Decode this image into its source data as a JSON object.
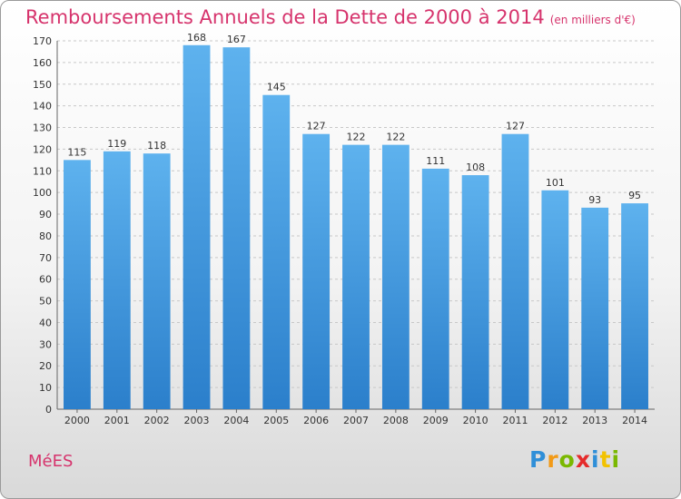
{
  "chart_data": {
    "type": "bar",
    "title": "Remboursements Annuels de la Dette de 2000 à 2014",
    "subtitle": "(en milliers d'€)",
    "categories": [
      "2000",
      "2001",
      "2002",
      "2003",
      "2004",
      "2005",
      "2006",
      "2007",
      "2008",
      "2009",
      "2010",
      "2011",
      "2012",
      "2013",
      "2014"
    ],
    "values": [
      115,
      119,
      118,
      168,
      167,
      145,
      127,
      122,
      122,
      111,
      108,
      127,
      101,
      93,
      95
    ],
    "ylim": [
      0,
      170
    ],
    "yticks": [
      0,
      10,
      20,
      30,
      40,
      50,
      60,
      70,
      80,
      90,
      100,
      110,
      120,
      130,
      140,
      150,
      160,
      170
    ],
    "grid": true,
    "bar_color": "#3f9ae0",
    "title_color": "#d6336c"
  },
  "footer": {
    "commune": "MéES",
    "logo": {
      "p": "P",
      "r": "r",
      "o": "o",
      "x": "x",
      "i": "i",
      "t": "t",
      "i2": "i"
    }
  }
}
